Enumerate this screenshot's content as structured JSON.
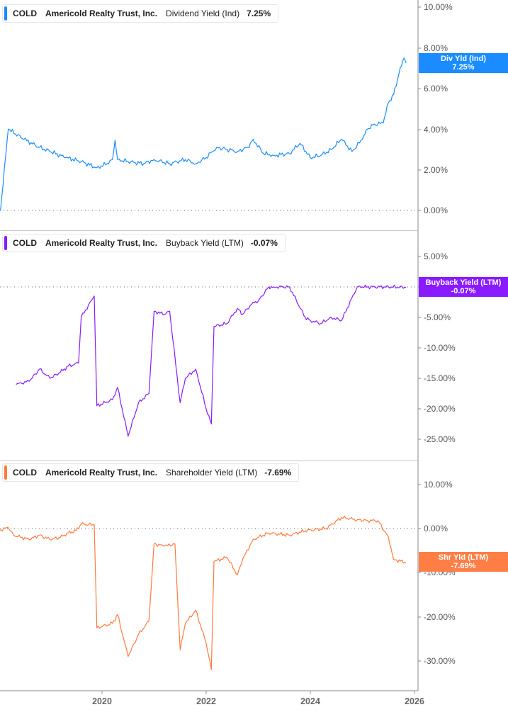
{
  "chart_data": [
    {
      "type": "line",
      "title": "COLD Americold Realty Trust, Inc. Dividend Yield (Ind) 7.25%",
      "ticker": "COLD",
      "company": "Americold Realty Trust, Inc.",
      "metric": "Dividend Yield (Ind)",
      "current_value": "7.25%",
      "color": "#1a8cff",
      "ylabel": "",
      "ylim": [
        0,
        10
      ],
      "yticks": [
        "10.00%",
        "8.00%",
        "6.00%",
        "4.00%",
        "2.00%",
        "0.00%"
      ],
      "x": [
        2018.05,
        2018.2,
        2018.5,
        2018.8,
        2019.0,
        2019.3,
        2019.6,
        2019.9,
        2020.1,
        2020.2,
        2020.25,
        2020.3,
        2020.5,
        2020.8,
        2021.0,
        2021.3,
        2021.6,
        2021.8,
        2022.0,
        2022.2,
        2022.4,
        2022.6,
        2022.8,
        2022.9,
        2023.1,
        2023.3,
        2023.6,
        2023.8,
        2024.0,
        2024.2,
        2024.4,
        2024.6,
        2024.8,
        2025.0,
        2025.1,
        2025.2,
        2025.4,
        2025.5,
        2025.6,
        2025.7,
        2025.8,
        2025.84
      ],
      "values": [
        0.0,
        4.0,
        3.5,
        3.1,
        2.9,
        2.6,
        2.4,
        2.1,
        2.3,
        2.5,
        3.45,
        2.5,
        2.4,
        2.3,
        2.5,
        2.3,
        2.5,
        2.3,
        2.6,
        3.1,
        3.0,
        2.9,
        3.1,
        3.5,
        2.8,
        2.7,
        2.8,
        3.3,
        2.6,
        2.7,
        3.0,
        3.5,
        2.9,
        3.5,
        4.0,
        4.2,
        4.3,
        5.3,
        5.7,
        6.7,
        7.5,
        7.25
      ],
      "label_tag": {
        "line1": "Div Yld (Ind)",
        "line2": "7.25%"
      }
    },
    {
      "type": "line",
      "title": "COLD Americold Realty Trust, Inc. Buyback Yield (LTM) -0.07%",
      "ticker": "COLD",
      "company": "Americold Realty Trust, Inc.",
      "metric": "Buyback Yield (LTM)",
      "current_value": "-0.07%",
      "color": "#8a1aff",
      "ylim": [
        -27,
        8
      ],
      "yticks": [
        "5.00%",
        "0.00%",
        "-5.00%",
        "-10.00%",
        "-15.00%",
        "-20.00%",
        "-25.00%"
      ],
      "x": [
        2018.35,
        2018.6,
        2018.8,
        2019.0,
        2019.2,
        2019.35,
        2019.55,
        2019.6,
        2019.85,
        2019.9,
        2020.2,
        2020.3,
        2020.5,
        2020.7,
        2020.9,
        2021.0,
        2021.2,
        2021.3,
        2021.5,
        2021.6,
        2021.8,
        2022.0,
        2022.1,
        2022.15,
        2022.4,
        2022.6,
        2022.7,
        2022.9,
        2023.0,
        2023.2,
        2023.3,
        2023.6,
        2023.9,
        2024.0,
        2024.2,
        2024.4,
        2024.6,
        2024.9,
        2025.0,
        2025.5,
        2025.84
      ],
      "values": [
        -16.0,
        -15.5,
        -13.5,
        -15.0,
        -14.0,
        -13.0,
        -12.5,
        -5.0,
        -1.5,
        -19.5,
        -18.5,
        -16.5,
        -24.5,
        -19.0,
        -17.5,
        -4.0,
        -4.5,
        -4.0,
        -19.0,
        -15.0,
        -13.5,
        -20.0,
        -22.5,
        -6.5,
        -6.0,
        -3.5,
        -4.5,
        -2.5,
        -2.3,
        0.0,
        0.0,
        0.0,
        -5.0,
        -5.5,
        -6.0,
        -5.0,
        -5.5,
        0.0,
        0.0,
        0.0,
        -0.07
      ],
      "label_tag": {
        "line1": "Buyback Yield (LTM)",
        "line2": "-0.07%"
      }
    },
    {
      "type": "line",
      "title": "COLD Americold Realty Trust, Inc. Shareholder Yield (LTM) -7.69%",
      "ticker": "COLD",
      "company": "Americold Realty Trust, Inc.",
      "metric": "Shareholder Yield (LTM)",
      "current_value": "-7.69%",
      "color": "#ff7a3d",
      "ylim": [
        -35,
        13
      ],
      "yticks": [
        "10.00%",
        "0.00%",
        "-10.00%",
        "-20.00%",
        "-30.00%"
      ],
      "x": [
        2018.0,
        2018.2,
        2018.3,
        2018.6,
        2018.8,
        2019.0,
        2019.2,
        2019.35,
        2019.5,
        2019.6,
        2019.85,
        2019.9,
        2020.2,
        2020.3,
        2020.5,
        2020.7,
        2020.9,
        2021.0,
        2021.2,
        2021.4,
        2021.5,
        2021.6,
        2021.8,
        2022.0,
        2022.1,
        2022.15,
        2022.4,
        2022.6,
        2022.7,
        2022.9,
        2023.2,
        2023.6,
        2023.9,
        2024.3,
        2024.6,
        2024.9,
        2025.1,
        2025.3,
        2025.5,
        2025.6,
        2025.84
      ],
      "values": [
        -0.5,
        0.2,
        -1.5,
        -2.5,
        -1.5,
        -2.5,
        -2.0,
        -1.0,
        -0.5,
        1.0,
        0.8,
        -22.5,
        -21.5,
        -19.5,
        -29.0,
        -24.0,
        -21.0,
        -3.5,
        -4.0,
        -3.5,
        -27.5,
        -21.5,
        -18.5,
        -26.0,
        -32.0,
        -7.5,
        -6.5,
        -10.5,
        -7.0,
        -2.5,
        -1.0,
        -1.5,
        -0.5,
        0.0,
        2.5,
        2.0,
        1.8,
        1.8,
        -2.0,
        -7.0,
        -7.69
      ],
      "label_tag": {
        "line1": "Shr Yld (LTM)",
        "line2": "-7.69%"
      }
    }
  ],
  "panels": [
    {
      "ticker": "COLD",
      "company": "Americold Realty Trust, Inc.",
      "metric": "Dividend Yield (Ind)",
      "value": "7.25%",
      "tag_line1": "Div Yld (Ind)",
      "tag_line2": "7.25%",
      "yticks": [
        "10.00%",
        "8.00%",
        "6.00%",
        "4.00%",
        "2.00%",
        "0.00%"
      ]
    },
    {
      "ticker": "COLD",
      "company": "Americold Realty Trust, Inc.",
      "metric": "Buyback Yield (LTM)",
      "value": "-0.07%",
      "tag_line1": "Buyback Yield (LTM)",
      "tag_line2": "-0.07%",
      "yticks": [
        "5.00%",
        "0.00%",
        "-5.00%",
        "-10.00%",
        "-15.00%",
        "-20.00%",
        "-25.00%"
      ]
    },
    {
      "ticker": "COLD",
      "company": "Americold Realty Trust, Inc.",
      "metric": "Shareholder Yield (LTM)",
      "value": "-7.69%",
      "tag_line1": "Shr Yld (LTM)",
      "tag_line2": "-7.69%",
      "yticks": [
        "10.00%",
        "0.00%",
        "-10.00%",
        "-20.00%",
        "-30.00%"
      ]
    }
  ],
  "x_axis": {
    "ticks": [
      "2020",
      "2022",
      "2024",
      "2026"
    ]
  },
  "colors": {
    "dividend": "#1a8cff",
    "buyback": "#8a1aff",
    "shareholder": "#ff7a3d",
    "axis": "#888888",
    "grid_zero": "#555555"
  }
}
